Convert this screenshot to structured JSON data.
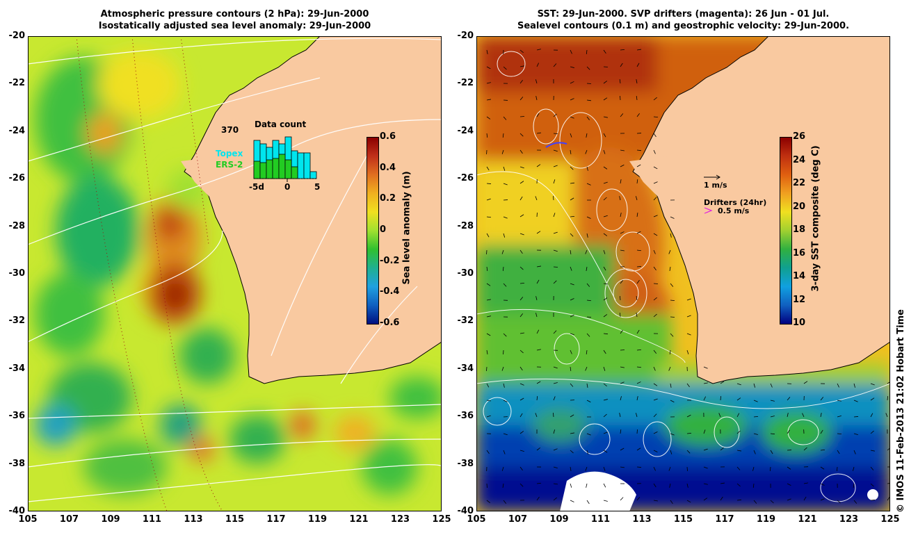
{
  "left_panel": {
    "title_line1": "Atmospheric pressure contours (2 hPa): 29-Jun-2000",
    "title_line2": "Isostatically adjusted sea level anomaly: 29-Jun-2000",
    "colorbar": {
      "label": "Sea level anomaly (m)",
      "ticks": [
        "0.6",
        "0.4",
        "0.2",
        "0",
        "-0.2",
        "-0.4",
        "-0.6"
      ],
      "colors": [
        "#8b0000",
        "#c0301a",
        "#e07020",
        "#f0b020",
        "#f0e020",
        "#a0e030",
        "#30c030",
        "#20b090",
        "#20a0e0",
        "#1060c0",
        "#001080"
      ]
    },
    "inset": {
      "title": "Data count",
      "max_label": "370",
      "topex_label": "Topex",
      "ers_label": "ERS-2",
      "x_ticks": [
        "-5d",
        "0",
        "5"
      ]
    }
  },
  "right_panel": {
    "title_line1": "SST: 29-Jun-2000. SVP drifters (magenta): 26 Jun - 01 Jul.",
    "title_line2": "Sealevel contours (0.1 m) and geostrophic velocity: 29-Jun-2000.",
    "colorbar": {
      "label": "3-day SST composite (deg C)",
      "ticks": [
        "26",
        "24",
        "22",
        "20",
        "18",
        "16",
        "14",
        "12",
        "10"
      ],
      "colors": [
        "#8b0000",
        "#c03010",
        "#e06010",
        "#f0a020",
        "#f0e020",
        "#a0d030",
        "#30b040",
        "#10a090",
        "#10a0e0",
        "#1060c0",
        "#000080"
      ]
    },
    "scale_label": "1 m/s",
    "drifter_title": "Drifters (24hr)",
    "drifter_speed": "0.5 m/s"
  },
  "axes": {
    "lat_ticks": [
      "-20",
      "-22",
      "-24",
      "-26",
      "-28",
      "-30",
      "-32",
      "-34",
      "-36",
      "-38",
      "-40"
    ],
    "lon_ticks": [
      "105",
      "107",
      "109",
      "111",
      "113",
      "115",
      "117",
      "119",
      "121",
      "123",
      "125"
    ]
  },
  "credit": "© IMOS 11-Feb-2013 21:02 Hobart Time",
  "colors": {
    "land": "#f9c9a0",
    "topex": "#00e5ee",
    "ers": "#22cc22",
    "drifter": "#e020e0"
  }
}
